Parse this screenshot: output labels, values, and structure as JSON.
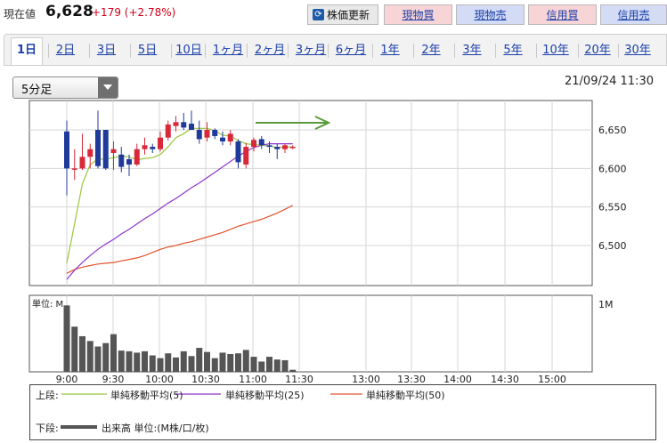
{
  "header": {
    "price_label": "現在値",
    "price": "6,628",
    "change": "+179 (+2.78%)",
    "refresh_button": "株価更新",
    "buy_cash": "現物買",
    "sell_cash": "現物売",
    "buy_margin": "信用買",
    "sell_margin": "信用売"
  },
  "tabs": [
    "1日",
    "2日",
    "3日",
    "5日",
    "10日",
    "1ヶ月",
    "2ヶ月",
    "3ヶ月",
    "6ヶ月",
    "1年",
    "2年",
    "3年",
    "5年",
    "10年",
    "20年",
    "30年"
  ],
  "active_tab": "1日",
  "period_select": {
    "value": "5分足"
  },
  "as_of": "21/09/24 11:30",
  "legend": {
    "upper_label": "上段:",
    "lower_label": "下段:",
    "ma5": "単純移動平均(5)",
    "ma25": "単純移動平均(25)",
    "ma50": "単純移動平均(50)",
    "volume": "出来高 単位:(M株/口/枚)"
  },
  "colors": {
    "up": "#d8283a",
    "down": "#1f3a9a",
    "ma5": "#9bc53d",
    "ma25": "#8e36c9",
    "ma50": "#e2532d",
    "volume": "#555555",
    "arrow": "#5a9a3a"
  },
  "chart_data": {
    "type": "candlestick",
    "interval": "5分足",
    "x_ticks": [
      "9:00",
      "9:30",
      "10:00",
      "10:30",
      "11:00",
      "11:30",
      "13:00",
      "13:30",
      "14:00",
      "14:30",
      "15:00"
    ],
    "y_ticks": [
      "6,650",
      "6,600",
      "6,550",
      "6,500"
    ],
    "ylim": [
      6450,
      6680
    ],
    "volume_unit_label": "単位: M",
    "volume_tick": "1M",
    "volume_max": 1.0,
    "candles": [
      {
        "o": 6648,
        "h": 6662,
        "l": 6565,
        "c": 6600
      },
      {
        "o": 6600,
        "h": 6625,
        "l": 6585,
        "c": 6600
      },
      {
        "o": 6600,
        "h": 6645,
        "l": 6598,
        "c": 6615
      },
      {
        "o": 6615,
        "h": 6632,
        "l": 6600,
        "c": 6625
      },
      {
        "o": 6650,
        "h": 6675,
        "l": 6600,
        "c": 6603
      },
      {
        "o": 6650,
        "h": 6650,
        "l": 6598,
        "c": 6600
      },
      {
        "o": 6620,
        "h": 6635,
        "l": 6598,
        "c": 6625
      },
      {
        "o": 6618,
        "h": 6628,
        "l": 6595,
        "c": 6602
      },
      {
        "o": 6612,
        "h": 6618,
        "l": 6590,
        "c": 6605
      },
      {
        "o": 6605,
        "h": 6632,
        "l": 6603,
        "c": 6625
      },
      {
        "o": 6625,
        "h": 6640,
        "l": 6618,
        "c": 6630
      },
      {
        "o": 6628,
        "h": 6632,
        "l": 6620,
        "c": 6625
      },
      {
        "o": 6625,
        "h": 6648,
        "l": 6622,
        "c": 6640
      },
      {
        "o": 6640,
        "h": 6662,
        "l": 6636,
        "c": 6657
      },
      {
        "o": 6655,
        "h": 6668,
        "l": 6648,
        "c": 6660
      },
      {
        "o": 6660,
        "h": 6672,
        "l": 6650,
        "c": 6653
      },
      {
        "o": 6658,
        "h": 6675,
        "l": 6650,
        "c": 6650
      },
      {
        "o": 6650,
        "h": 6662,
        "l": 6632,
        "c": 6638
      },
      {
        "o": 6640,
        "h": 6660,
        "l": 6635,
        "c": 6650
      },
      {
        "o": 6650,
        "h": 6652,
        "l": 6638,
        "c": 6642
      },
      {
        "o": 6640,
        "h": 6648,
        "l": 6630,
        "c": 6635
      },
      {
        "o": 6635,
        "h": 6650,
        "l": 6630,
        "c": 6645
      },
      {
        "o": 6635,
        "h": 6638,
        "l": 6600,
        "c": 6608
      },
      {
        "o": 6605,
        "h": 6633,
        "l": 6600,
        "c": 6628
      },
      {
        "o": 6628,
        "h": 6640,
        "l": 6622,
        "c": 6637
      },
      {
        "o": 6638,
        "h": 6642,
        "l": 6625,
        "c": 6630
      },
      {
        "o": 6630,
        "h": 6635,
        "l": 6620,
        "c": 6628
      },
      {
        "o": 6628,
        "h": 6632,
        "l": 6612,
        "c": 6625
      },
      {
        "o": 6625,
        "h": 6632,
        "l": 6620,
        "c": 6630
      },
      {
        "o": 6628,
        "h": 6630,
        "l": 6625,
        "c": 6628
      }
    ],
    "ma5": [
      6477,
      6528,
      6580,
      6605,
      6612,
      6612,
      6614,
      6616,
      6615,
      6611,
      6613,
      6614,
      6618,
      6628,
      6640,
      6645,
      6652,
      6652,
      6652,
      6649,
      6643,
      6642,
      6636,
      6632,
      6631,
      6630,
      6629,
      6627,
      6628,
      6628
    ],
    "ma25": [
      6456,
      6468,
      6478,
      6487,
      6495,
      6502,
      6508,
      6515,
      6521,
      6528,
      6535,
      6541,
      6548,
      6555,
      6561,
      6568,
      6575,
      6581,
      6588,
      6595,
      6602,
      6609,
      6616,
      6622,
      6627,
      6630,
      6632,
      6632,
      6632,
      6632
    ],
    "ma50": [
      6464,
      6469,
      6472,
      6474,
      6476,
      6477,
      6478,
      6480,
      6482,
      6484,
      6487,
      6491,
      6495,
      6498,
      6500,
      6503,
      6505,
      6508,
      6511,
      6514,
      6517,
      6521,
      6525,
      6528,
      6531,
      6534,
      6538,
      6542,
      6547,
      6552
    ],
    "volume": [
      0.97,
      0.66,
      0.52,
      0.45,
      0.37,
      0.42,
      0.55,
      0.31,
      0.3,
      0.28,
      0.3,
      0.24,
      0.2,
      0.27,
      0.21,
      0.3,
      0.23,
      0.35,
      0.29,
      0.2,
      0.28,
      0.26,
      0.27,
      0.32,
      0.22,
      0.15,
      0.22,
      0.18,
      0.17,
      0.03
    ]
  }
}
